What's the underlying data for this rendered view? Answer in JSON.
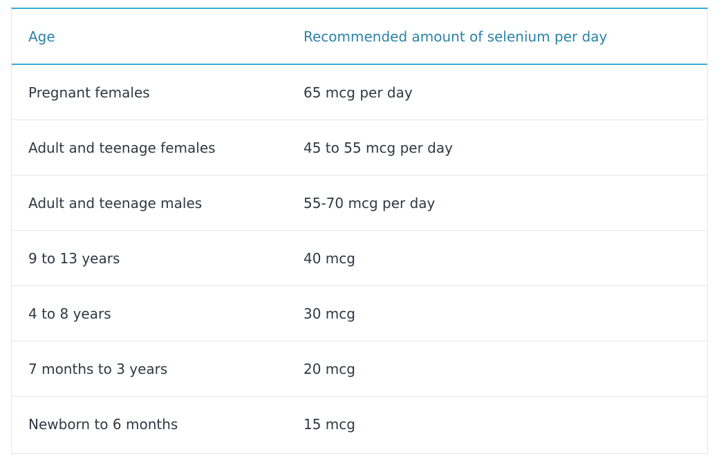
{
  "table": {
    "headers": {
      "age": "Age",
      "amount": "Recommended amount of selenium per day"
    },
    "rows": [
      {
        "age": "Pregnant females",
        "amount": "65 mcg per day"
      },
      {
        "age": "Adult and teenage females",
        "amount": "45 to 55 mcg per day"
      },
      {
        "age": "Adult and teenage males",
        "amount": "55-70 mcg per day"
      },
      {
        "age": "9 to 13 years",
        "amount": "40 mcg"
      },
      {
        "age": "4 to 8 years",
        "amount": "30 mcg"
      },
      {
        "age": "7 months to 3 years",
        "amount": "20 mcg"
      },
      {
        "age": "Newborn to 6 months",
        "amount": "15 mcg"
      }
    ]
  },
  "colors": {
    "header_text": "#2b83a6",
    "accent_border": "#3aa9d6",
    "body_text": "#2f3742",
    "row_divider": "#e6e6e6"
  }
}
